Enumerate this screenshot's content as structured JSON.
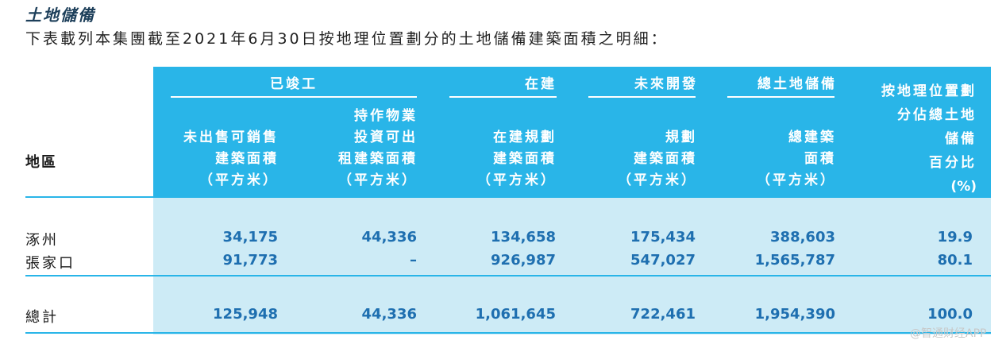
{
  "heading": {
    "title": "土地儲備",
    "intro": "下表載列本集團截至2021年6月30日按地理位置劃分的土地儲備建築面積之明細："
  },
  "table": {
    "group_headers": {
      "completed": "已竣工",
      "under_construction": "在建",
      "future": "未來開發",
      "total_land_bank": "總土地儲備"
    },
    "column_headers": {
      "region": "地區",
      "unsold": [
        "未出售可銷售",
        "建築面積",
        "（平方米）"
      ],
      "held_investment": [
        "持作物業",
        "投資可出",
        "租建築面積",
        "（平方米）"
      ],
      "under_construction": [
        "在建規劃",
        "建築面積",
        "（平方米）"
      ],
      "future": [
        "規劃",
        "建築面積",
        "（平方米）"
      ],
      "total": [
        "總建築",
        "面積",
        "（平方米）"
      ],
      "percent": [
        "按地理位置劃",
        "分佔總土地",
        "儲備",
        "百分比",
        "(%)"
      ]
    },
    "rows": [
      {
        "region": "涿州",
        "unsold": "34,175",
        "held": "44,336",
        "construction": "134,658",
        "future": "175,434",
        "total": "388,603",
        "pct": "19.9"
      },
      {
        "region": "張家口",
        "unsold": "91,773",
        "held": "–",
        "construction": "926,987",
        "future": "547,027",
        "total": "1,565,787",
        "pct": "80.1"
      }
    ],
    "total_row": {
      "region": "總計",
      "unsold": "125,948",
      "held": "44,336",
      "construction": "1,061,645",
      "future": "722,461",
      "total": "1,954,390",
      "pct": "100.0"
    }
  },
  "watermark": "@智通财经APP",
  "colors": {
    "header_bg": "#29b5e8",
    "body_bg": "#cdebf6",
    "number_text": "#1e6fb0"
  }
}
